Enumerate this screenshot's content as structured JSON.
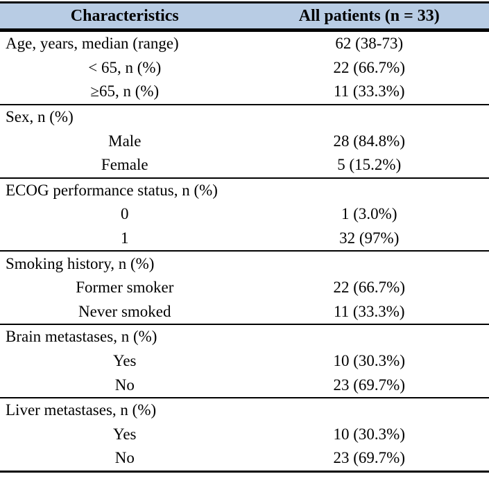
{
  "colors": {
    "header_bg": "#b8cce4",
    "line": "#000000",
    "text": "#000000"
  },
  "table": {
    "header": {
      "col1": "Characteristics",
      "col2": "All patients (n = 33)"
    },
    "sections": [
      {
        "name": "age",
        "rows": [
          {
            "label": "Age, years, median (range)",
            "value": "62 (38-73)"
          },
          {
            "label": "< 65, n (%)",
            "value": "22 (66.7%)"
          },
          {
            "label": "≥65, n (%)",
            "value": "11 (33.3%)"
          }
        ]
      },
      {
        "name": "sex",
        "rows": [
          {
            "label": "Sex, n (%)",
            "value": ""
          },
          {
            "label": "Male",
            "value": "28 (84.8%)"
          },
          {
            "label": "Female",
            "value": "5 (15.2%)"
          }
        ]
      },
      {
        "name": "ecog",
        "rows": [
          {
            "label": "ECOG performance status, n (%)",
            "value": ""
          },
          {
            "label": "0",
            "value": "1 (3.0%)"
          },
          {
            "label": "1",
            "value": "32 (97%)"
          }
        ]
      },
      {
        "name": "smoking",
        "rows": [
          {
            "label": "Smoking history, n (%)",
            "value": ""
          },
          {
            "label": "Former smoker",
            "value": "22 (66.7%)"
          },
          {
            "label": "Never smoked",
            "value": "11 (33.3%)"
          }
        ]
      },
      {
        "name": "brain-metastases",
        "rows": [
          {
            "label": "Brain metastases, n (%)",
            "value": ""
          },
          {
            "label": "Yes",
            "value": "10 (30.3%)"
          },
          {
            "label": "No",
            "value": "23 (69.7%)"
          }
        ]
      },
      {
        "name": "liver-metastases",
        "rows": [
          {
            "label": "Liver metastases, n (%)",
            "value": ""
          },
          {
            "label": "Yes",
            "value": "10 (30.3%)"
          },
          {
            "label": "No",
            "value": "23 (69.7%)"
          }
        ]
      }
    ]
  }
}
